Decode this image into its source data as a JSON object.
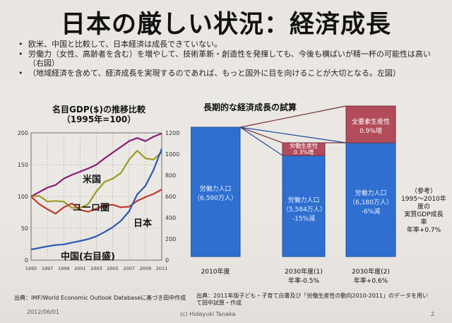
{
  "slide": {
    "title": "日本の厳しい状況：経済成長",
    "bullets": [
      "欧米、中国と比較して、日本経済は成長できていない。",
      "労働力（女性、高齢者を含む）を増やして、技術革新・創造性を発揮しても、今後も横ばいが精一杯の可能性は高い（右図）",
      "（地域経済を含めて、経済成長を実現するのであれば、もっと国外に目を向けることが大切となる。左図）"
    ],
    "left_chart_title": [
      "名目GDP($)の推移比較",
      "（1995年=100）"
    ],
    "right_chart_title": "長期的な経済成長の試算",
    "note": {
      "lines": [
        "（参考）",
        "1995～2010年",
        "度の",
        "実質GDP成長",
        "率",
        "年率+0.7%"
      ]
    },
    "source_left": "出典：IMF/World Economic Outlook Databaseに基づき田中作成",
    "source_right": "出典：2011年版子ども・子育て白書及び「労働生産性の動向2010-2011」のデータを用いて田中試算・作成",
    "date": "2012/06/01",
    "author": "(c) Hideyuki Tanaka",
    "page": "2"
  },
  "chart_data": [
    {
      "type": "line",
      "title": "名目GDP($)の推移比較（1995年=100）",
      "x": [
        1995,
        1996,
        1997,
        1998,
        1999,
        2000,
        2001,
        2002,
        2003,
        2004,
        2005,
        2006,
        2007,
        2008,
        2009,
        2010,
        2011
      ],
      "x_tick_labels": [
        "1995",
        "1997",
        "1999",
        "2001",
        "2003",
        "2005",
        "2007",
        "2009",
        "2011"
      ],
      "ylim_left": [
        0,
        200
      ],
      "y_left_ticks": [
        0,
        50,
        100,
        150,
        200
      ],
      "ylim_right": [
        0,
        1200
      ],
      "y_right_ticks": [
        0,
        200,
        400,
        600,
        800,
        1000,
        1200
      ],
      "series": [
        {
          "name": "米国",
          "color": "#8a1b7a",
          "axis": "left",
          "values": [
            100,
            107,
            114,
            118,
            128,
            134,
            139,
            144,
            150,
            160,
            169,
            178,
            187,
            192,
            187,
            194,
            199
          ]
        },
        {
          "name": "ユーロ圏",
          "color": "#9a9a22",
          "axis": "left",
          "values": [
            100,
            101,
            92,
            93,
            92,
            82,
            82,
            88,
            108,
            123,
            128,
            137,
            158,
            172,
            160,
            158,
            170
          ]
        },
        {
          "name": "日本",
          "color": "#c0392b",
          "axis": "left",
          "values": [
            100,
            88,
            80,
            73,
            83,
            89,
            79,
            76,
            81,
            86,
            87,
            83,
            84,
            93,
            99,
            104,
            111
          ]
        },
        {
          "name": "中国(右目盛)",
          "color": "#2c57b5",
          "axis": "right",
          "values": [
            100,
            115,
            130,
            142,
            148,
            165,
            180,
            198,
            225,
            265,
            310,
            370,
            460,
            620,
            700,
            850,
            1050
          ]
        }
      ]
    },
    {
      "type": "bar",
      "title": "長期的な経済成長の試算",
      "categories": [
        "2010年度",
        "2030年度(1)",
        "2030年度(2)"
      ],
      "category_sublabels": [
        "",
        "年率-0.5%",
        "年率+0.6%"
      ],
      "segments": [
        {
          "bar": 0,
          "label": "労働力人口",
          "sublabel": "（6,590万人）",
          "color": "#2f6fd0"
        },
        {
          "bar": 1,
          "label": "労働力人口",
          "sublabel": "（5,584万人）",
          "extra": "-15%減",
          "color": "#2f6fd0"
        },
        {
          "bar": 1,
          "label": "労働生産性",
          "sublabel": "0.3%増",
          "color": "#b24c5a"
        },
        {
          "bar": 2,
          "label": "労働力人口",
          "sublabel": "（6,180万人）",
          "extra": "-6%減",
          "color": "#2f6fd0"
        },
        {
          "bar": 2,
          "label": "全要素生産性",
          "sublabel": "0.9%増",
          "color": "#b24c5a"
        }
      ]
    }
  ]
}
